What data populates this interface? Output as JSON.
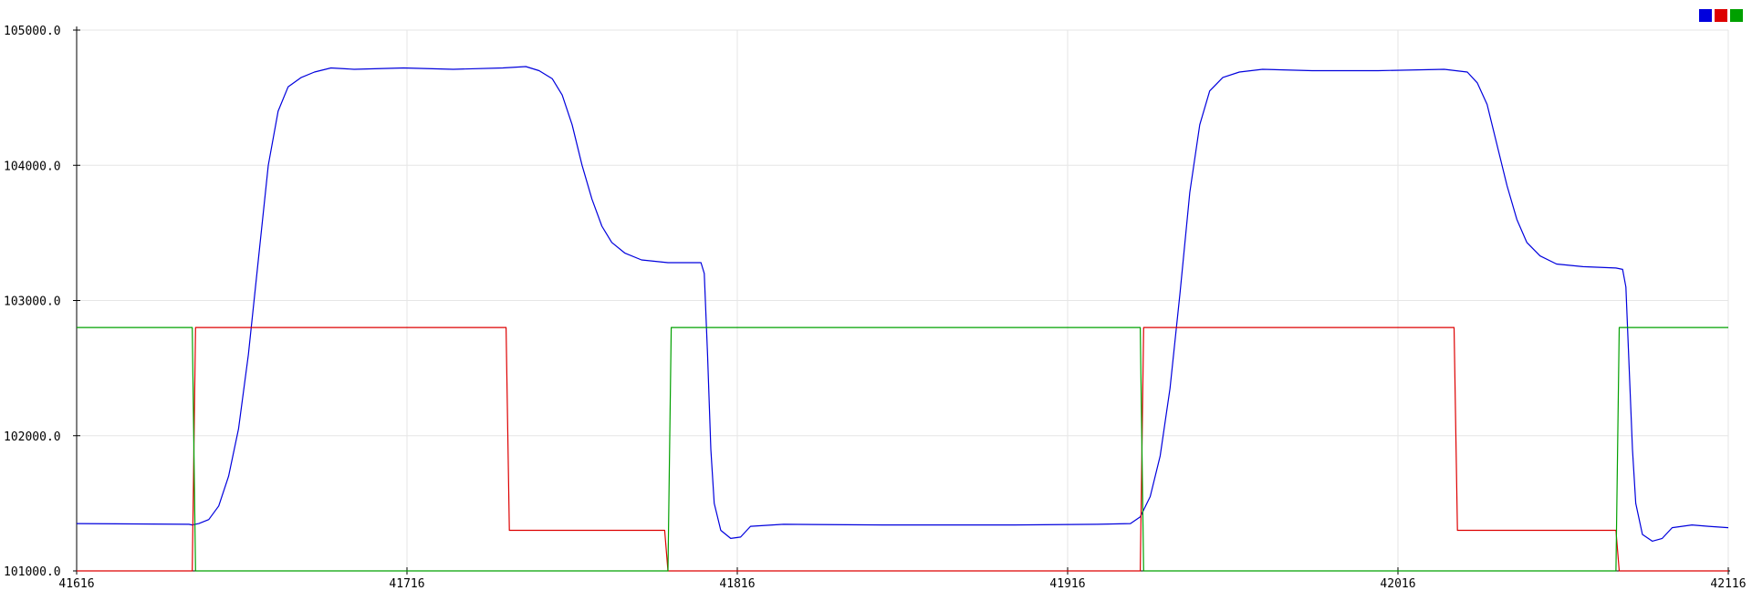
{
  "chart_data": {
    "type": "line",
    "title": "",
    "xlabel": "",
    "ylabel": "",
    "xlim": [
      41616,
      42116
    ],
    "ylim": [
      101000,
      105000
    ],
    "x_ticks": [
      41616,
      41716,
      41816,
      41916,
      42016,
      42116
    ],
    "y_ticks": [
      101000,
      102000,
      103000,
      104000,
      105000
    ],
    "x_tick_labels": [
      "41616",
      "41716",
      "41816",
      "41916",
      "42016",
      "42116"
    ],
    "y_tick_labels": [
      "101000.0",
      "102000.0",
      "103000.0",
      "104000.0",
      "105000.0"
    ],
    "grid": true,
    "legend_position": "top-right",
    "series": [
      {
        "color": "#0000dd",
        "points": [
          [
            41616,
            101350
          ],
          [
            41650,
            101345
          ],
          [
            41651,
            101340
          ],
          [
            41653,
            101350
          ],
          [
            41656,
            101380
          ],
          [
            41659,
            101480
          ],
          [
            41662,
            101700
          ],
          [
            41665,
            102050
          ],
          [
            41668,
            102600
          ],
          [
            41671,
            103300
          ],
          [
            41674,
            104000
          ],
          [
            41677,
            104400
          ],
          [
            41680,
            104580
          ],
          [
            41684,
            104650
          ],
          [
            41688,
            104690
          ],
          [
            41693,
            104720
          ],
          [
            41700,
            104710
          ],
          [
            41715,
            104720
          ],
          [
            41730,
            104710
          ],
          [
            41745,
            104720
          ],
          [
            41752,
            104730
          ],
          [
            41756,
            104700
          ],
          [
            41760,
            104640
          ],
          [
            41763,
            104520
          ],
          [
            41766,
            104300
          ],
          [
            41769,
            104000
          ],
          [
            41772,
            103750
          ],
          [
            41775,
            103550
          ],
          [
            41778,
            103430
          ],
          [
            41782,
            103350
          ],
          [
            41787,
            103300
          ],
          [
            41795,
            103280
          ],
          [
            41805,
            103280
          ],
          [
            41806,
            103200
          ],
          [
            41807,
            102600
          ],
          [
            41808,
            101900
          ],
          [
            41809,
            101500
          ],
          [
            41811,
            101300
          ],
          [
            41814,
            101240
          ],
          [
            41817,
            101250
          ],
          [
            41820,
            101330
          ],
          [
            41830,
            101345
          ],
          [
            41860,
            101340
          ],
          [
            41900,
            101340
          ],
          [
            41925,
            101345
          ],
          [
            41935,
            101350
          ],
          [
            41938,
            101400
          ],
          [
            41941,
            101550
          ],
          [
            41944,
            101850
          ],
          [
            41947,
            102350
          ],
          [
            41950,
            103050
          ],
          [
            41953,
            103800
          ],
          [
            41956,
            104300
          ],
          [
            41959,
            104550
          ],
          [
            41963,
            104650
          ],
          [
            41968,
            104690
          ],
          [
            41975,
            104710
          ],
          [
            41990,
            104700
          ],
          [
            42010,
            104700
          ],
          [
            42030,
            104710
          ],
          [
            42037,
            104690
          ],
          [
            42040,
            104610
          ],
          [
            42043,
            104450
          ],
          [
            42046,
            104150
          ],
          [
            42049,
            103850
          ],
          [
            42052,
            103600
          ],
          [
            42055,
            103430
          ],
          [
            42059,
            103330
          ],
          [
            42064,
            103270
          ],
          [
            42072,
            103250
          ],
          [
            42082,
            103240
          ],
          [
            42084,
            103230
          ],
          [
            42085,
            103100
          ],
          [
            42086,
            102500
          ],
          [
            42087,
            101900
          ],
          [
            42088,
            101500
          ],
          [
            42090,
            101270
          ],
          [
            42093,
            101220
          ],
          [
            42096,
            101240
          ],
          [
            42099,
            101320
          ],
          [
            42105,
            101340
          ],
          [
            42110,
            101330
          ],
          [
            42116,
            101320
          ]
        ]
      },
      {
        "color": "#dd0000",
        "points": [
          [
            41616,
            101000
          ],
          [
            41651,
            101000
          ],
          [
            41652,
            102800
          ],
          [
            41746,
            102800
          ],
          [
            41747,
            101300
          ],
          [
            41794,
            101300
          ],
          [
            41795,
            101000
          ],
          [
            41938,
            101000
          ],
          [
            41939,
            102800
          ],
          [
            42033,
            102800
          ],
          [
            42034,
            101300
          ],
          [
            42082,
            101300
          ],
          [
            42083,
            101000
          ],
          [
            42116,
            101000
          ]
        ]
      },
      {
        "color": "#00a000",
        "points": [
          [
            41616,
            102800
          ],
          [
            41651,
            102800
          ],
          [
            41652,
            101000
          ],
          [
            41795,
            101000
          ],
          [
            41796,
            102800
          ],
          [
            41938,
            102800
          ],
          [
            41939,
            101000
          ],
          [
            42082,
            101000
          ],
          [
            42083,
            102800
          ],
          [
            42116,
            102800
          ]
        ]
      }
    ]
  },
  "legend": {
    "swatches": [
      "#0000dd",
      "#dd0000",
      "#00a000"
    ]
  }
}
